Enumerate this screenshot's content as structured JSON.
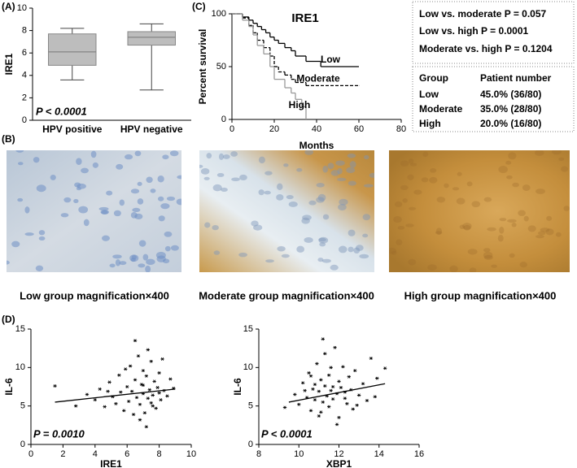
{
  "panel_labels": [
    "(A)",
    "(B)",
    "(C)",
    "(D)"
  ],
  "chart_data": [
    {
      "type": "box",
      "ylabel": "IRE1",
      "categories": [
        "HPV positive",
        "HPV negative"
      ],
      "boxes": [
        {
          "min": 3.6,
          "q1": 4.9,
          "median": 6.1,
          "q3": 7.7,
          "max": 8.2
        },
        {
          "min": 2.7,
          "q1": 6.7,
          "median": 7.4,
          "q3": 7.9,
          "max": 8.6
        }
      ],
      "color": "#bdbdbd",
      "ylim": [
        0,
        10
      ],
      "yticks": [
        0,
        2,
        4,
        6,
        8,
        10
      ],
      "annotation": "P < 0.0001"
    },
    {
      "type": "survival",
      "title": "IRE1",
      "xlabel": "Months",
      "ylabel": "Percent survival",
      "xlim": [
        0,
        80
      ],
      "xticks": [
        0,
        20,
        40,
        60,
        80
      ],
      "ylim": [
        0,
        100
      ],
      "yticks": [
        0,
        50,
        100
      ],
      "series": [
        {
          "name": "Low",
          "color": "#000000",
          "x": [
            0,
            5,
            8,
            10,
            12,
            14,
            16,
            18,
            20,
            22,
            25,
            28,
            30,
            35,
            42,
            60
          ],
          "values": [
            100,
            97,
            94,
            91,
            88,
            85,
            82,
            78,
            75,
            72,
            68,
            65,
            60,
            55,
            50,
            50
          ]
        },
        {
          "name": "Moderate",
          "color": "#000000",
          "dashed": true,
          "x": [
            0,
            5,
            8,
            10,
            12,
            15,
            18,
            20,
            22,
            25,
            28,
            30,
            35,
            60
          ],
          "values": [
            100,
            96,
            89,
            82,
            75,
            68,
            60,
            50,
            45,
            42,
            38,
            35,
            32,
            32
          ]
        },
        {
          "name": "High",
          "color": "#999999",
          "x": [
            0,
            5,
            8,
            10,
            12,
            15,
            18,
            20,
            25,
            28,
            30,
            33,
            35
          ],
          "values": [
            100,
            94,
            88,
            80,
            70,
            62,
            50,
            38,
            30,
            25,
            19,
            12,
            0
          ]
        }
      ]
    },
    {
      "type": "scatter",
      "xlabel": "IRE1",
      "ylabel": "IL-6",
      "annotation": "P = 0.0010",
      "xlim": [
        0,
        10
      ],
      "xticks": [
        0,
        2,
        4,
        6,
        8,
        10
      ],
      "ylim": [
        0,
        15
      ],
      "yticks": [
        0,
        5,
        10,
        15
      ],
      "x": [
        1.5,
        2.8,
        3.5,
        4.0,
        4.3,
        4.6,
        4.9,
        5.1,
        5.3,
        5.5,
        5.6,
        5.8,
        6.0,
        6.1,
        6.2,
        6.3,
        6.4,
        6.5,
        6.6,
        6.7,
        6.8,
        6.9,
        7.0,
        7.0,
        7.1,
        7.2,
        7.3,
        7.3,
        7.4,
        7.5,
        7.5,
        7.6,
        7.7,
        7.8,
        7.9,
        8.0,
        8.0,
        8.1,
        8.2,
        8.3,
        8.5,
        8.7,
        8.9,
        6.5,
        7.2,
        5.9,
        6.8,
        7.6,
        4.8,
        7.0
      ],
      "values": [
        7.6,
        5.0,
        6.5,
        5.8,
        7.2,
        4.9,
        8.1,
        6.2,
        5.3,
        9.0,
        6.8,
        4.4,
        7.5,
        5.6,
        10.2,
        6.9,
        3.9,
        8.4,
        6.1,
        11.5,
        5.2,
        7.8,
        6.6,
        9.6,
        4.1,
        8.9,
        6.0,
        12.3,
        7.1,
        5.4,
        10.8,
        6.4,
        8.2,
        4.7,
        7.4,
        6.7,
        9.3,
        5.8,
        11.1,
        7.0,
        6.3,
        8.5,
        7.3,
        13.5,
        2.3,
        9.8,
        3.2,
        5.0,
        6.9,
        7.7
      ],
      "fit": {
        "x": [
          1.5,
          9
        ],
        "y": [
          5.5,
          7.2
        ]
      }
    },
    {
      "type": "scatter",
      "xlabel": "XBP1",
      "ylabel": "IL-6",
      "annotation": "P < 0.0001",
      "xlim": [
        8,
        16
      ],
      "xticks": [
        8,
        10,
        12,
        14,
        16
      ],
      "ylim": [
        0,
        15
      ],
      "yticks": [
        0,
        5,
        10,
        15
      ],
      "x": [
        9.3,
        9.8,
        10.0,
        10.2,
        10.4,
        10.5,
        10.6,
        10.7,
        10.8,
        10.9,
        11.0,
        11.0,
        11.1,
        11.2,
        11.3,
        11.3,
        11.4,
        11.5,
        11.5,
        11.6,
        11.7,
        11.8,
        11.9,
        12.0,
        12.0,
        12.1,
        12.2,
        12.3,
        12.4,
        12.5,
        12.6,
        12.7,
        12.8,
        13.0,
        13.2,
        13.4,
        13.6,
        13.9,
        14.3,
        11.2,
        11.9,
        10.8,
        12.3,
        11.6,
        10.6,
        12.9,
        11.1,
        11.7,
        13.8,
        10.3
      ],
      "values": [
        4.8,
        6.5,
        5.2,
        8.0,
        6.1,
        9.3,
        4.4,
        7.2,
        5.8,
        10.5,
        6.9,
        3.7,
        8.4,
        5.5,
        7.6,
        11.8,
        6.3,
        4.9,
        9.0,
        7.0,
        5.9,
        12.6,
        6.6,
        8.2,
        3.5,
        7.4,
        10.1,
        6.0,
        5.3,
        8.8,
        7.1,
        4.6,
        9.6,
        6.4,
        7.9,
        5.7,
        11.2,
        8.6,
        9.9,
        13.7,
        2.6,
        7.8,
        6.8,
        10.0,
        8.9,
        5.1,
        4.2,
        7.5,
        6.2,
        7.0
      ],
      "fit": {
        "x": [
          9.5,
          14.3
        ],
        "y": [
          5.5,
          7.9
        ]
      }
    }
  ],
  "comparisons": [
    "Low vs. moderate P = 0.057",
    "Low vs. high P = 0.0001",
    "Moderate vs. high P = 0.1204"
  ],
  "table": {
    "header": [
      "Group",
      "Patient number"
    ],
    "rows": [
      [
        "Low",
        "45.0% (36/80)"
      ],
      [
        "Moderate",
        "35.0% (28/80)"
      ],
      [
        "High",
        "20.0% (16/80)"
      ]
    ]
  },
  "micrographs": [
    "Low group magnification×400",
    "Moderate group magnification×400",
    "High group magnification×400"
  ]
}
